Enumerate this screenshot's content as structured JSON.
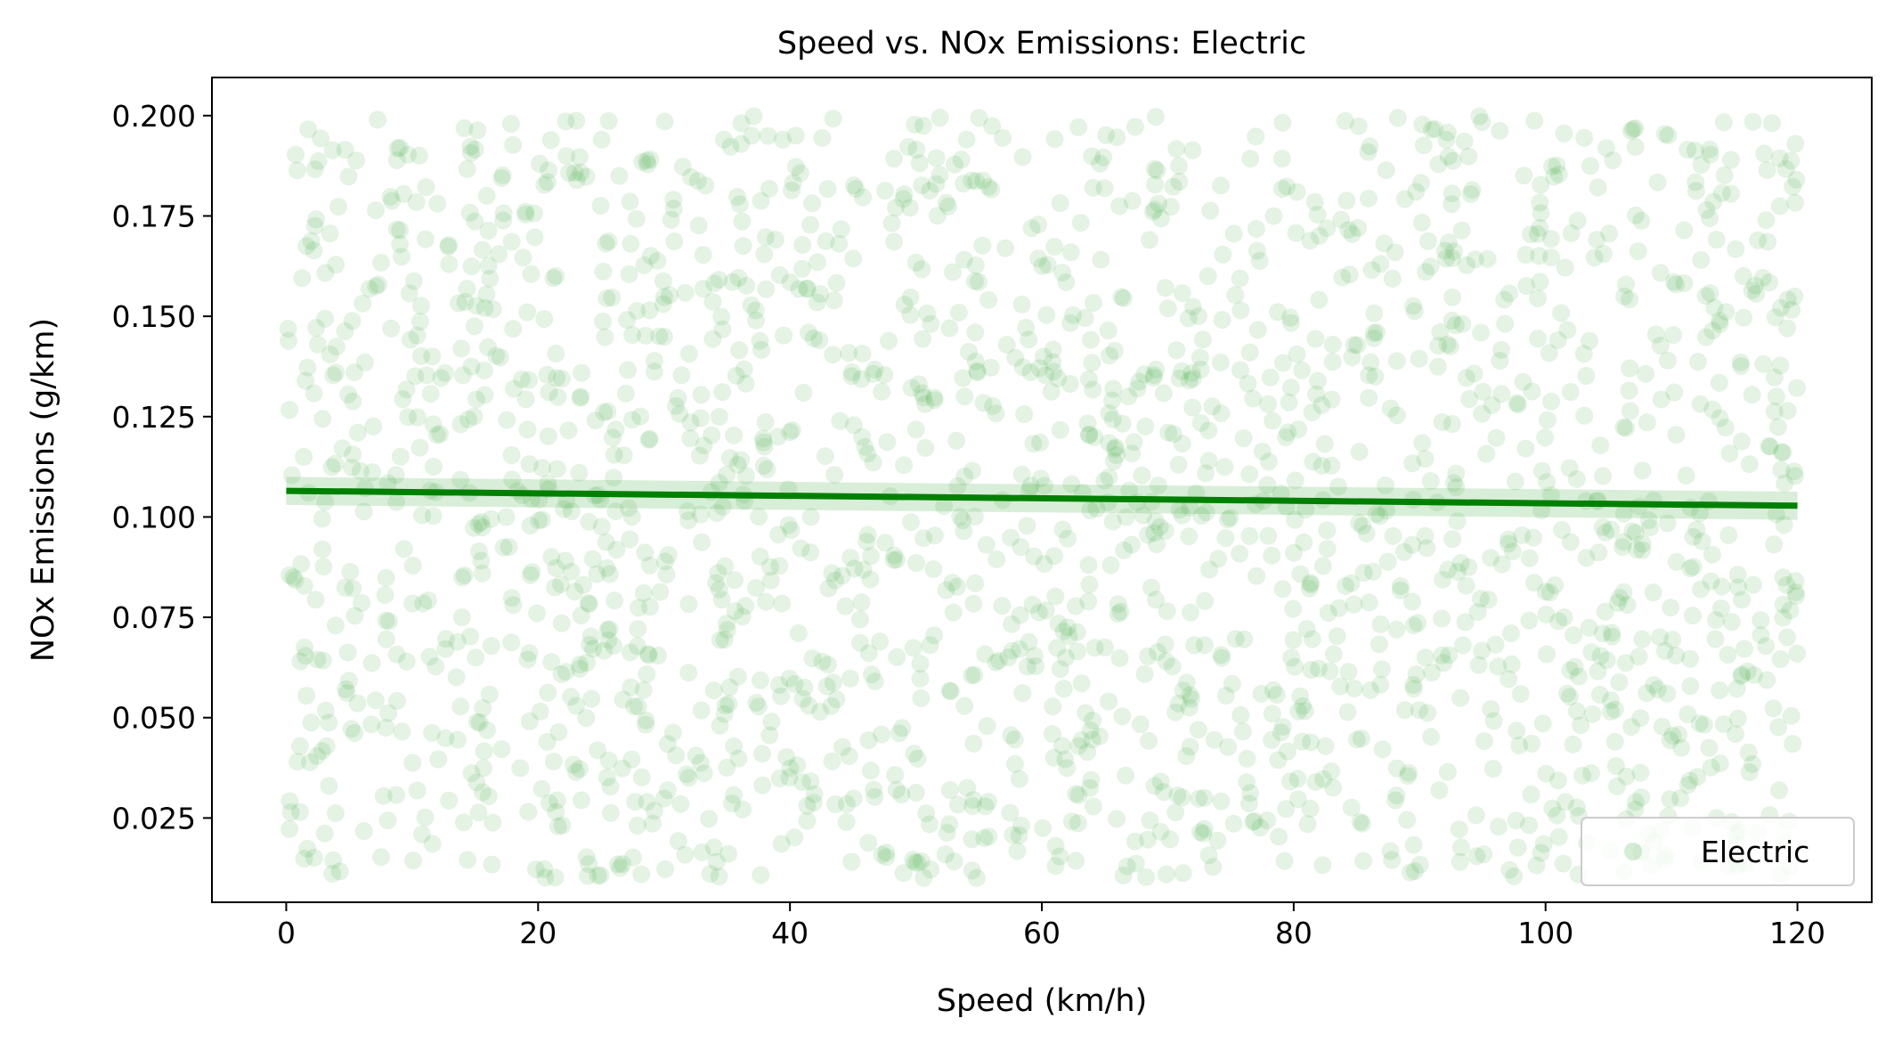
{
  "chart_data": {
    "type": "scatter",
    "title": "Speed vs. NOx Emissions: Electric",
    "xlabel": "Speed (km/h)",
    "ylabel": "NOx Emissions (g/km)",
    "xlim": [
      -5.9,
      125.9
    ],
    "ylim": [
      0.004,
      0.2095
    ],
    "xticks": [
      0,
      20,
      40,
      60,
      80,
      100,
      120
    ],
    "xtick_labels": [
      "0",
      "20",
      "40",
      "60",
      "80",
      "100",
      "120"
    ],
    "yticks": [
      0.025,
      0.05,
      0.075,
      0.1,
      0.125,
      0.15,
      0.175,
      0.2
    ],
    "ytick_labels": [
      "0.025",
      "0.050",
      "0.075",
      "0.100",
      "0.125",
      "0.150",
      "0.175",
      "0.200"
    ],
    "grid": false,
    "legend": {
      "placement": "bottom-right",
      "entries": [
        "Electric"
      ]
    },
    "colors": {
      "points": "#2ca02c",
      "trend": "#008000",
      "band": "#2ca02c"
    },
    "series": [
      {
        "name": "Electric",
        "kind": "scatter",
        "point_count": 2000,
        "x_range": [
          0,
          120
        ],
        "y_range": [
          0.01,
          0.2
        ],
        "distribution": "uniform",
        "opacity": 0.13
      },
      {
        "kind": "regression",
        "x": [
          0,
          120
        ],
        "y": [
          0.1065,
          0.1028
        ],
        "ci_halfwidth": [
          0.0035,
          0.0035
        ]
      }
    ]
  }
}
